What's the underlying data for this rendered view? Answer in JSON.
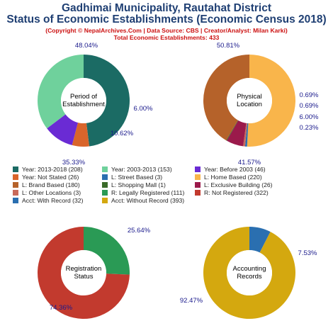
{
  "header": {
    "title_line1": "Gadhimai Municipality, Rautahat District",
    "title_line2": "Status of Economic Establishments (Economic Census 2018)",
    "copyright": "(Copyright © NepalArchives.Com | Data Source: CBS | Creator/Analyst: Milan Karki)",
    "total": "Total Economic Establishments: 433"
  },
  "legend": [
    {
      "label": "Year: 2013-2018 (208)",
      "color": "#1b6b64"
    },
    {
      "label": "Year: 2003-2013 (153)",
      "color": "#6fd19c"
    },
    {
      "label": "Year: Before 2003 (46)",
      "color": "#6a2bd4"
    },
    {
      "label": "Year: Not Stated (26)",
      "color": "#d9652b"
    },
    {
      "label": "L: Street Based (3)",
      "color": "#2a6fb0"
    },
    {
      "label": "L: Home Based (220)",
      "color": "#f9b54b"
    },
    {
      "label": "L: Brand Based (180)",
      "color": "#b5622a"
    },
    {
      "label": "L: Shopping Mall (1)",
      "color": "#3a6b2a"
    },
    {
      "label": "L: Exclusive Building (26)",
      "color": "#9b1a4b"
    },
    {
      "label": "L: Other Locations (3)",
      "color": "#c86a5a"
    },
    {
      "label": "R: Legally Registered (111)",
      "color": "#2a9a55"
    },
    {
      "label": "R: Not Registered (322)",
      "color": "#c23a2e"
    },
    {
      "label": "Acct: With Record (32)",
      "color": "#2a6fb0"
    },
    {
      "label": "Acct: Without Record (393)",
      "color": "#d4a80f"
    }
  ],
  "chart_data": [
    {
      "type": "pie",
      "center_label": [
        "Period of",
        "Establishment"
      ],
      "slices": [
        {
          "label": "Year: 2013-2018",
          "value": 208,
          "pct": "48.04%",
          "color": "#1b6b64"
        },
        {
          "label": "Year: Not Stated",
          "value": 26,
          "pct": "6.00%",
          "color": "#d9652b"
        },
        {
          "label": "Year: Before 2003",
          "value": 46,
          "pct": "10.62%",
          "color": "#6a2bd4"
        },
        {
          "label": "Year: 2003-2013",
          "value": 153,
          "pct": "35.33%",
          "color": "#6fd19c"
        }
      ]
    },
    {
      "type": "pie",
      "center_label": [
        "Physical",
        "Location"
      ],
      "slices": [
        {
          "label": "L: Home Based",
          "value": 220,
          "pct": "50.81%",
          "color": "#f9b54b"
        },
        {
          "label": "L: Street Based",
          "value": 3,
          "pct": "0.69%",
          "color": "#2a6fb0"
        },
        {
          "label": "L: Other Locations",
          "value": 3,
          "pct": "0.69%",
          "color": "#c86a5a"
        },
        {
          "label": "L: Exclusive Building",
          "value": 26,
          "pct": "6.00%",
          "color": "#9b1a4b"
        },
        {
          "label": "L: Shopping Mall",
          "value": 1,
          "pct": "0.23%",
          "color": "#3a6b2a"
        },
        {
          "label": "L: Brand Based",
          "value": 180,
          "pct": "41.57%",
          "color": "#b5622a"
        }
      ]
    },
    {
      "type": "pie",
      "center_label": [
        "Registration",
        "Status"
      ],
      "slices": [
        {
          "label": "R: Legally Registered",
          "value": 111,
          "pct": "25.64%",
          "color": "#2a9a55"
        },
        {
          "label": "R: Not Registered",
          "value": 322,
          "pct": "74.36%",
          "color": "#c23a2e"
        }
      ]
    },
    {
      "type": "pie",
      "center_label": [
        "Accounting",
        "Records"
      ],
      "slices": [
        {
          "label": "Acct: With Record",
          "value": 32,
          "pct": "7.53%",
          "color": "#2a6fb0"
        },
        {
          "label": "Acct: Without Record",
          "value": 393,
          "pct": "92.47%",
          "color": "#d4a80f"
        }
      ]
    }
  ]
}
